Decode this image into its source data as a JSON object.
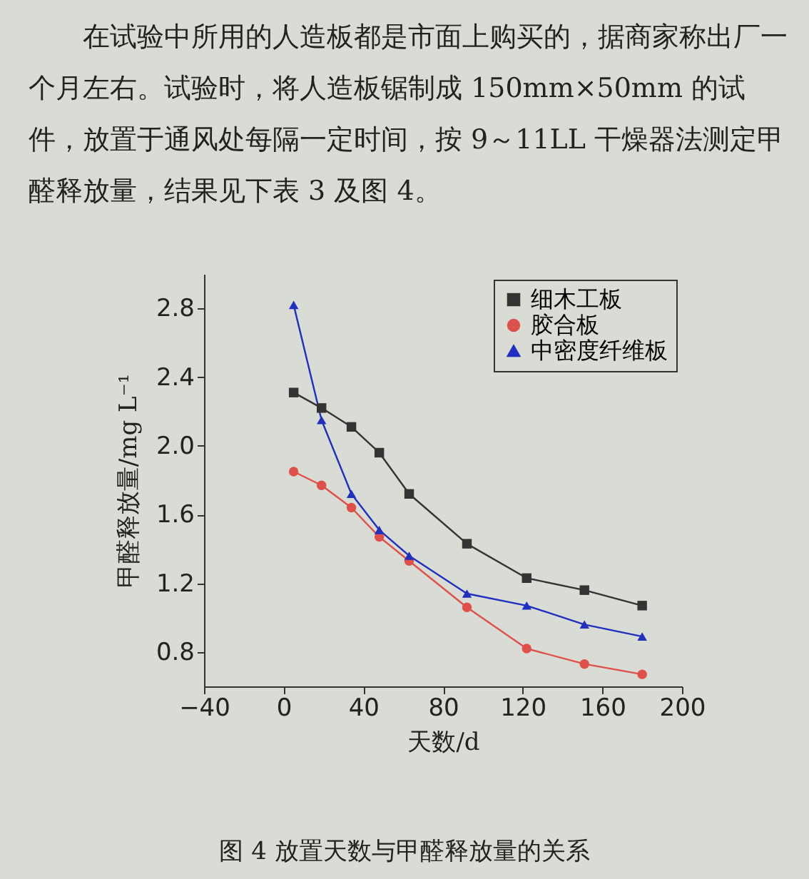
{
  "chart_data": {
    "type": "line",
    "annotations": [
      "在试验中所用的人造板都是市面上购买的，据商家称出厂一个月左右。试验时，将人造板锯制成 150mm×50mm 的试件，放置于通风处每隔一定时间，按 9～11LL 干燥器法测定甲醛释放量，结果见下表 3 及图 4。",
      "图 4  放置天数与甲醛释放量的关系"
    ],
    "xlabel": "天数/d",
    "ylabel": "甲醛释放量/mg L⁻¹",
    "x": [
      5,
      19,
      34,
      48,
      63,
      92,
      122,
      151,
      180
    ],
    "series": [
      {
        "name": "细木工板",
        "color": "#333333",
        "marker": "square",
        "values": [
          2.31,
          2.22,
          2.11,
          1.96,
          1.72,
          1.43,
          1.23,
          1.16,
          1.07
        ]
      },
      {
        "name": "胶合板",
        "color": "#e0504a",
        "marker": "circle",
        "values": [
          1.85,
          1.77,
          1.64,
          1.47,
          1.33,
          1.06,
          0.82,
          0.73,
          0.67
        ]
      },
      {
        "name": "中密度纤维板",
        "color": "#1f2fc0",
        "marker": "triangle",
        "values": [
          2.82,
          2.15,
          1.72,
          1.51,
          1.36,
          1.14,
          1.07,
          0.96,
          0.89
        ]
      }
    ],
    "xlim": [
      -40,
      200
    ],
    "xticks": [
      -40,
      0,
      40,
      80,
      120,
      160,
      200
    ],
    "ylim": [
      0.6,
      3.0
    ],
    "yticks": [
      0.8,
      1.2,
      1.6,
      {
        "value": 2,
        "label": "2.0"
      },
      2.4,
      2.8
    ],
    "grid": false,
    "legend": "top right",
    "line_style": "solid"
  }
}
